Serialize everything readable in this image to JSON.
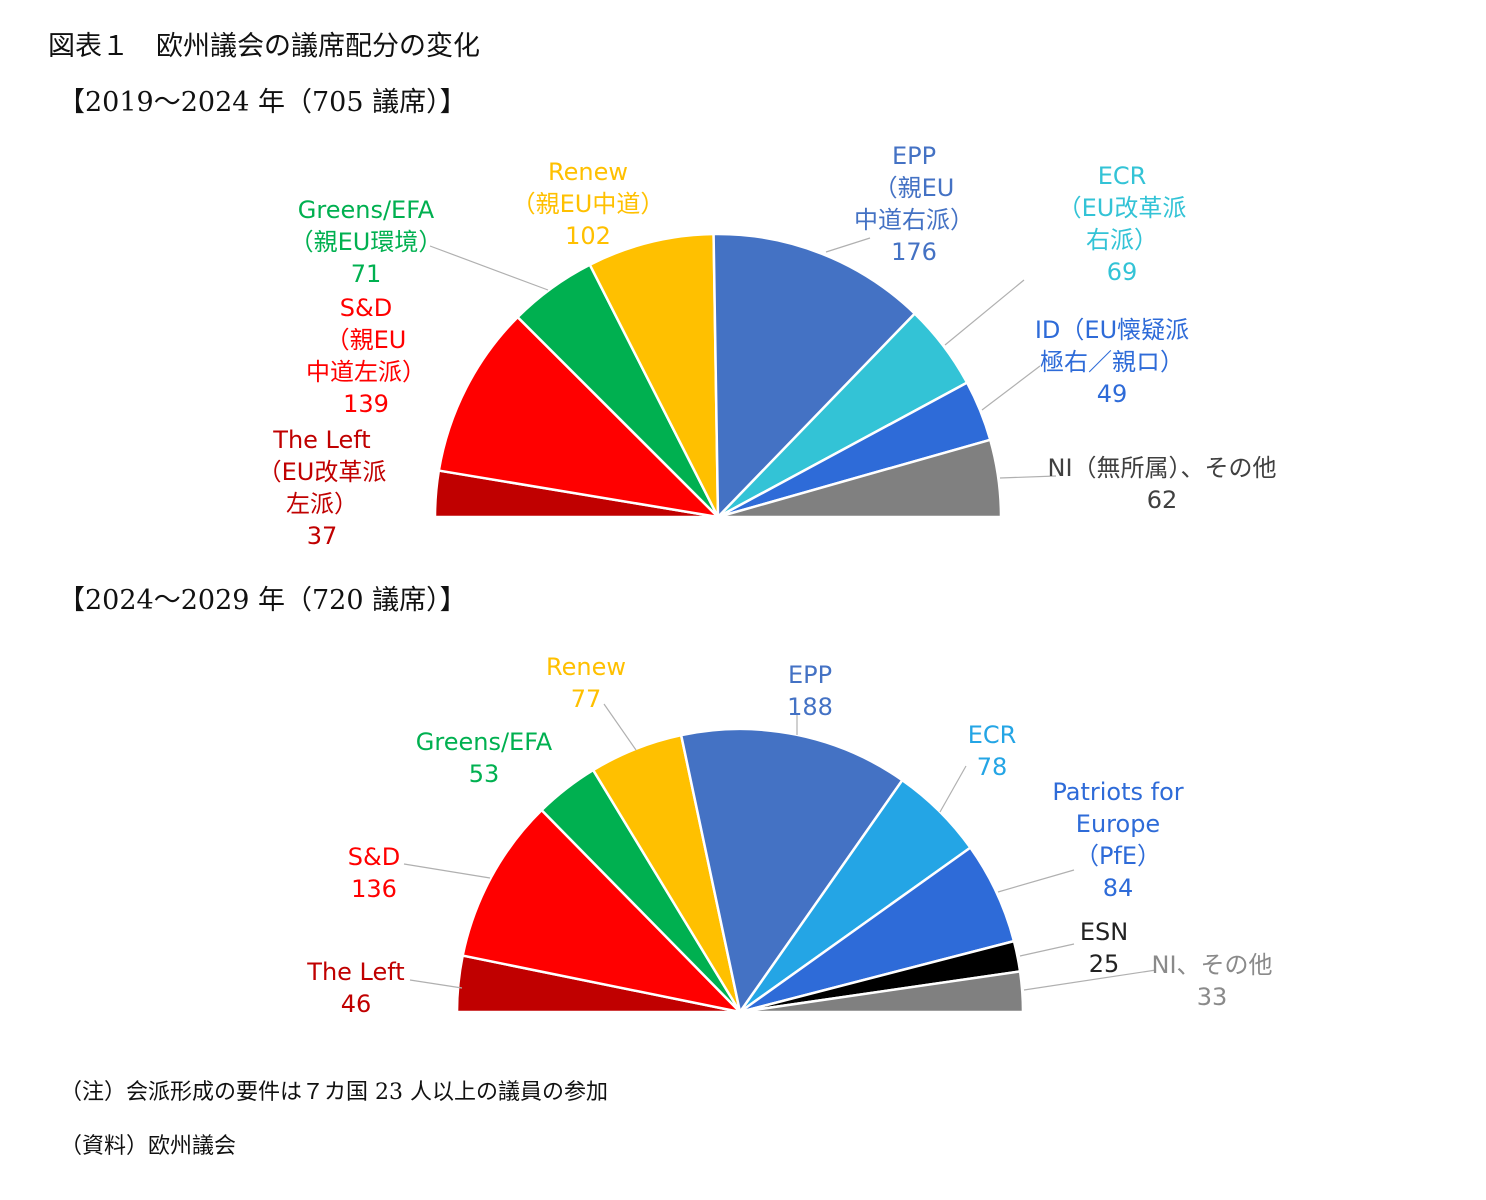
{
  "title": "図表１　欧州議会の議席配分の変化",
  "notes": {
    "note": "（注）会派形成の要件は７カ国 23 人以上の議員の参加",
    "source": "（資料）欧州議会"
  },
  "chart_data": [
    {
      "type": "pie",
      "variant": "semicircle-parliament",
      "title": "【2019～2024 年（705 議席）】",
      "total": 705,
      "series": [
        {
          "group": "The Left",
          "lines": [
            "The Left",
            "（EU改革派",
            "左派）",
            "37"
          ],
          "value": 37,
          "color": "#C00000"
        },
        {
          "group": "S&D",
          "lines": [
            "S&D",
            "（親EU",
            "中道左派）",
            "139"
          ],
          "value": 139,
          "color": "#FF0000"
        },
        {
          "group": "Greens/EFA",
          "lines": [
            "Greens/EFA",
            "（親EU環境）",
            "71"
          ],
          "value": 71,
          "color": "#00B050"
        },
        {
          "group": "Renew",
          "lines": [
            "Renew",
            "（親EU中道）",
            "102"
          ],
          "value": 102,
          "color": "#FFC000"
        },
        {
          "group": "EPP",
          "lines": [
            "EPP",
            "（親EU",
            "中道右派）",
            "176"
          ],
          "value": 176,
          "color": "#4472C4"
        },
        {
          "group": "ECR",
          "lines": [
            "ECR",
            "（EU改革派",
            "右派）",
            "69"
          ],
          "value": 69,
          "color": "#33C3D6"
        },
        {
          "group": "ID",
          "lines": [
            "ID（EU懐疑派",
            "極右／親ロ）",
            "49"
          ],
          "value": 49,
          "color": "#2E6BD8"
        },
        {
          "group": "NI",
          "lines": [
            "NI（無所属）、その他",
            "62"
          ],
          "value": 62,
          "color": "#808080"
        }
      ]
    },
    {
      "type": "pie",
      "variant": "semicircle-parliament",
      "title": "【2024～2029 年（720 議席）】",
      "total": 720,
      "series": [
        {
          "group": "The Left",
          "lines": [
            "The Left",
            "46"
          ],
          "value": 46,
          "color": "#C00000"
        },
        {
          "group": "S&D",
          "lines": [
            "S&D",
            "136"
          ],
          "value": 136,
          "color": "#FF0000"
        },
        {
          "group": "Greens/EFA",
          "lines": [
            "Greens/EFA",
            "53"
          ],
          "value": 53,
          "color": "#00B050"
        },
        {
          "group": "Renew",
          "lines": [
            "Renew",
            "77"
          ],
          "value": 77,
          "color": "#FFC000"
        },
        {
          "group": "EPP",
          "lines": [
            "EPP",
            "188"
          ],
          "value": 188,
          "color": "#4472C4"
        },
        {
          "group": "ECR",
          "lines": [
            "ECR",
            "78"
          ],
          "value": 78,
          "color": "#24A5E5"
        },
        {
          "group": "Patriots for Europe",
          "lines": [
            "Patriots for",
            "Europe",
            "（PfE）",
            "84"
          ],
          "value": 84,
          "color": "#2E6BD8"
        },
        {
          "group": "ESN",
          "lines": [
            "ESN",
            "25"
          ],
          "value": 25,
          "color": "#000000"
        },
        {
          "group": "NI",
          "lines": [
            "NI、その他",
            "33"
          ],
          "value": 33,
          "color": "#808080"
        }
      ]
    }
  ]
}
